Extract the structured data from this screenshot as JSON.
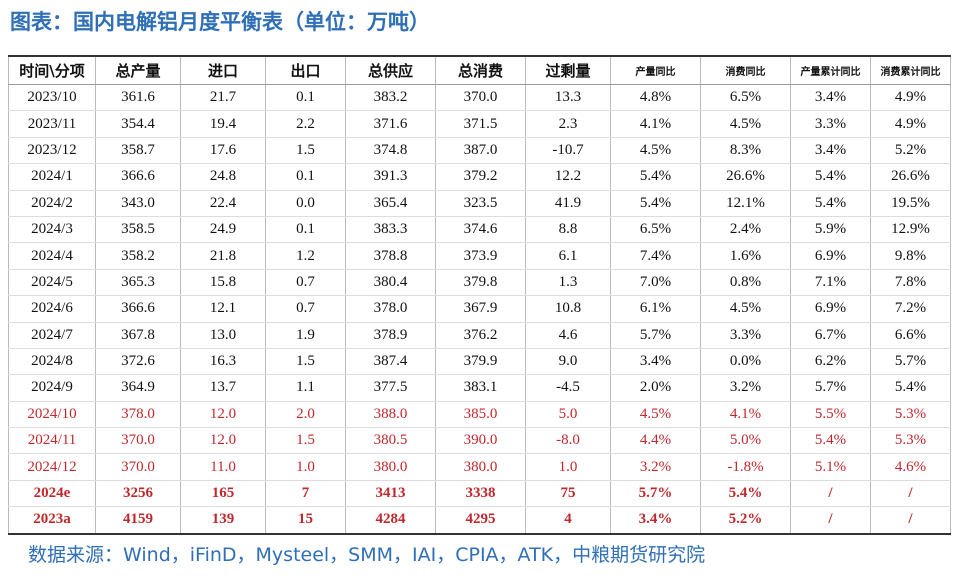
{
  "title": "图表：国内电解铝月度平衡表（单位：万吨）",
  "table": {
    "header": [
      "时间\\分项",
      "总产量",
      "进口",
      "出口",
      "总供应",
      "总消费",
      "过剩量",
      "产量同比",
      "消费同比",
      "产量累计同比",
      "消费累计同比"
    ],
    "rows": [
      [
        "2023/10",
        "361.6",
        "21.7",
        "0.1",
        "383.2",
        "370.0",
        "13.3",
        "4.8%",
        "6.5%",
        "3.4%",
        "4.9%"
      ],
      [
        "2023/11",
        "354.4",
        "19.4",
        "2.2",
        "371.6",
        "371.5",
        "2.3",
        "4.1%",
        "4.5%",
        "3.3%",
        "4.9%"
      ],
      [
        "2023/12",
        "358.7",
        "17.6",
        "1.5",
        "374.8",
        "387.0",
        "-10.7",
        "4.5%",
        "8.3%",
        "3.4%",
        "5.2%"
      ],
      [
        "2024/1",
        "366.6",
        "24.8",
        "0.1",
        "391.3",
        "379.2",
        "12.2",
        "5.4%",
        "26.6%",
        "5.4%",
        "26.6%"
      ],
      [
        "2024/2",
        "343.0",
        "22.4",
        "0.0",
        "365.4",
        "323.5",
        "41.9",
        "5.4%",
        "12.1%",
        "5.4%",
        "19.5%"
      ],
      [
        "2024/3",
        "358.5",
        "24.9",
        "0.1",
        "383.3",
        "374.6",
        "8.8",
        "6.5%",
        "2.4%",
        "5.9%",
        "12.9%"
      ],
      [
        "2024/4",
        "358.2",
        "21.8",
        "1.2",
        "378.8",
        "373.9",
        "6.1",
        "7.4%",
        "1.6%",
        "6.9%",
        "9.8%"
      ],
      [
        "2024/5",
        "365.3",
        "15.8",
        "0.7",
        "380.4",
        "379.8",
        "1.3",
        "7.0%",
        "0.8%",
        "7.1%",
        "7.8%"
      ],
      [
        "2024/6",
        "366.6",
        "12.1",
        "0.7",
        "378.0",
        "367.9",
        "10.8",
        "6.1%",
        "4.5%",
        "6.9%",
        "7.2%"
      ],
      [
        "2024/7",
        "367.8",
        "13.0",
        "1.9",
        "378.9",
        "376.2",
        "4.6",
        "5.7%",
        "3.3%",
        "6.7%",
        "6.6%"
      ],
      [
        "2024/8",
        "372.6",
        "16.3",
        "1.5",
        "387.4",
        "379.9",
        "9.0",
        "3.4%",
        "0.0%",
        "6.2%",
        "5.7%"
      ],
      [
        "2024/9",
        "364.9",
        "13.7",
        "1.1",
        "377.5",
        "383.1",
        "-4.5",
        "2.0%",
        "3.2%",
        "5.7%",
        "5.4%"
      ],
      [
        "2024/10",
        "378.0",
        "12.0",
        "2.0",
        "388.0",
        "385.0",
        "5.0",
        "4.5%",
        "4.1%",
        "5.5%",
        "5.3%"
      ],
      [
        "2024/11",
        "370.0",
        "12.0",
        "1.5",
        "380.5",
        "390.0",
        "-8.0",
        "4.4%",
        "5.0%",
        "5.4%",
        "5.3%"
      ],
      [
        "2024/12",
        "370.0",
        "11.0",
        "1.0",
        "380.0",
        "380.0",
        "1.0",
        "3.2%",
        "-1.8%",
        "5.1%",
        "4.6%"
      ],
      [
        "2024e",
        "3256",
        "165",
        "7",
        "3413",
        "3338",
        "75",
        "5.7%",
        "5.4%",
        "/",
        "/"
      ],
      [
        "2023a",
        "4159",
        "139",
        "15",
        "4284",
        "4295",
        "4",
        "3.4%",
        "5.2%",
        "/",
        "/"
      ]
    ]
  },
  "source": "数据来源：Wind，iFinD，Mysteel，SMM，IAI，CPIA，ATK，中粮期货研究院"
}
